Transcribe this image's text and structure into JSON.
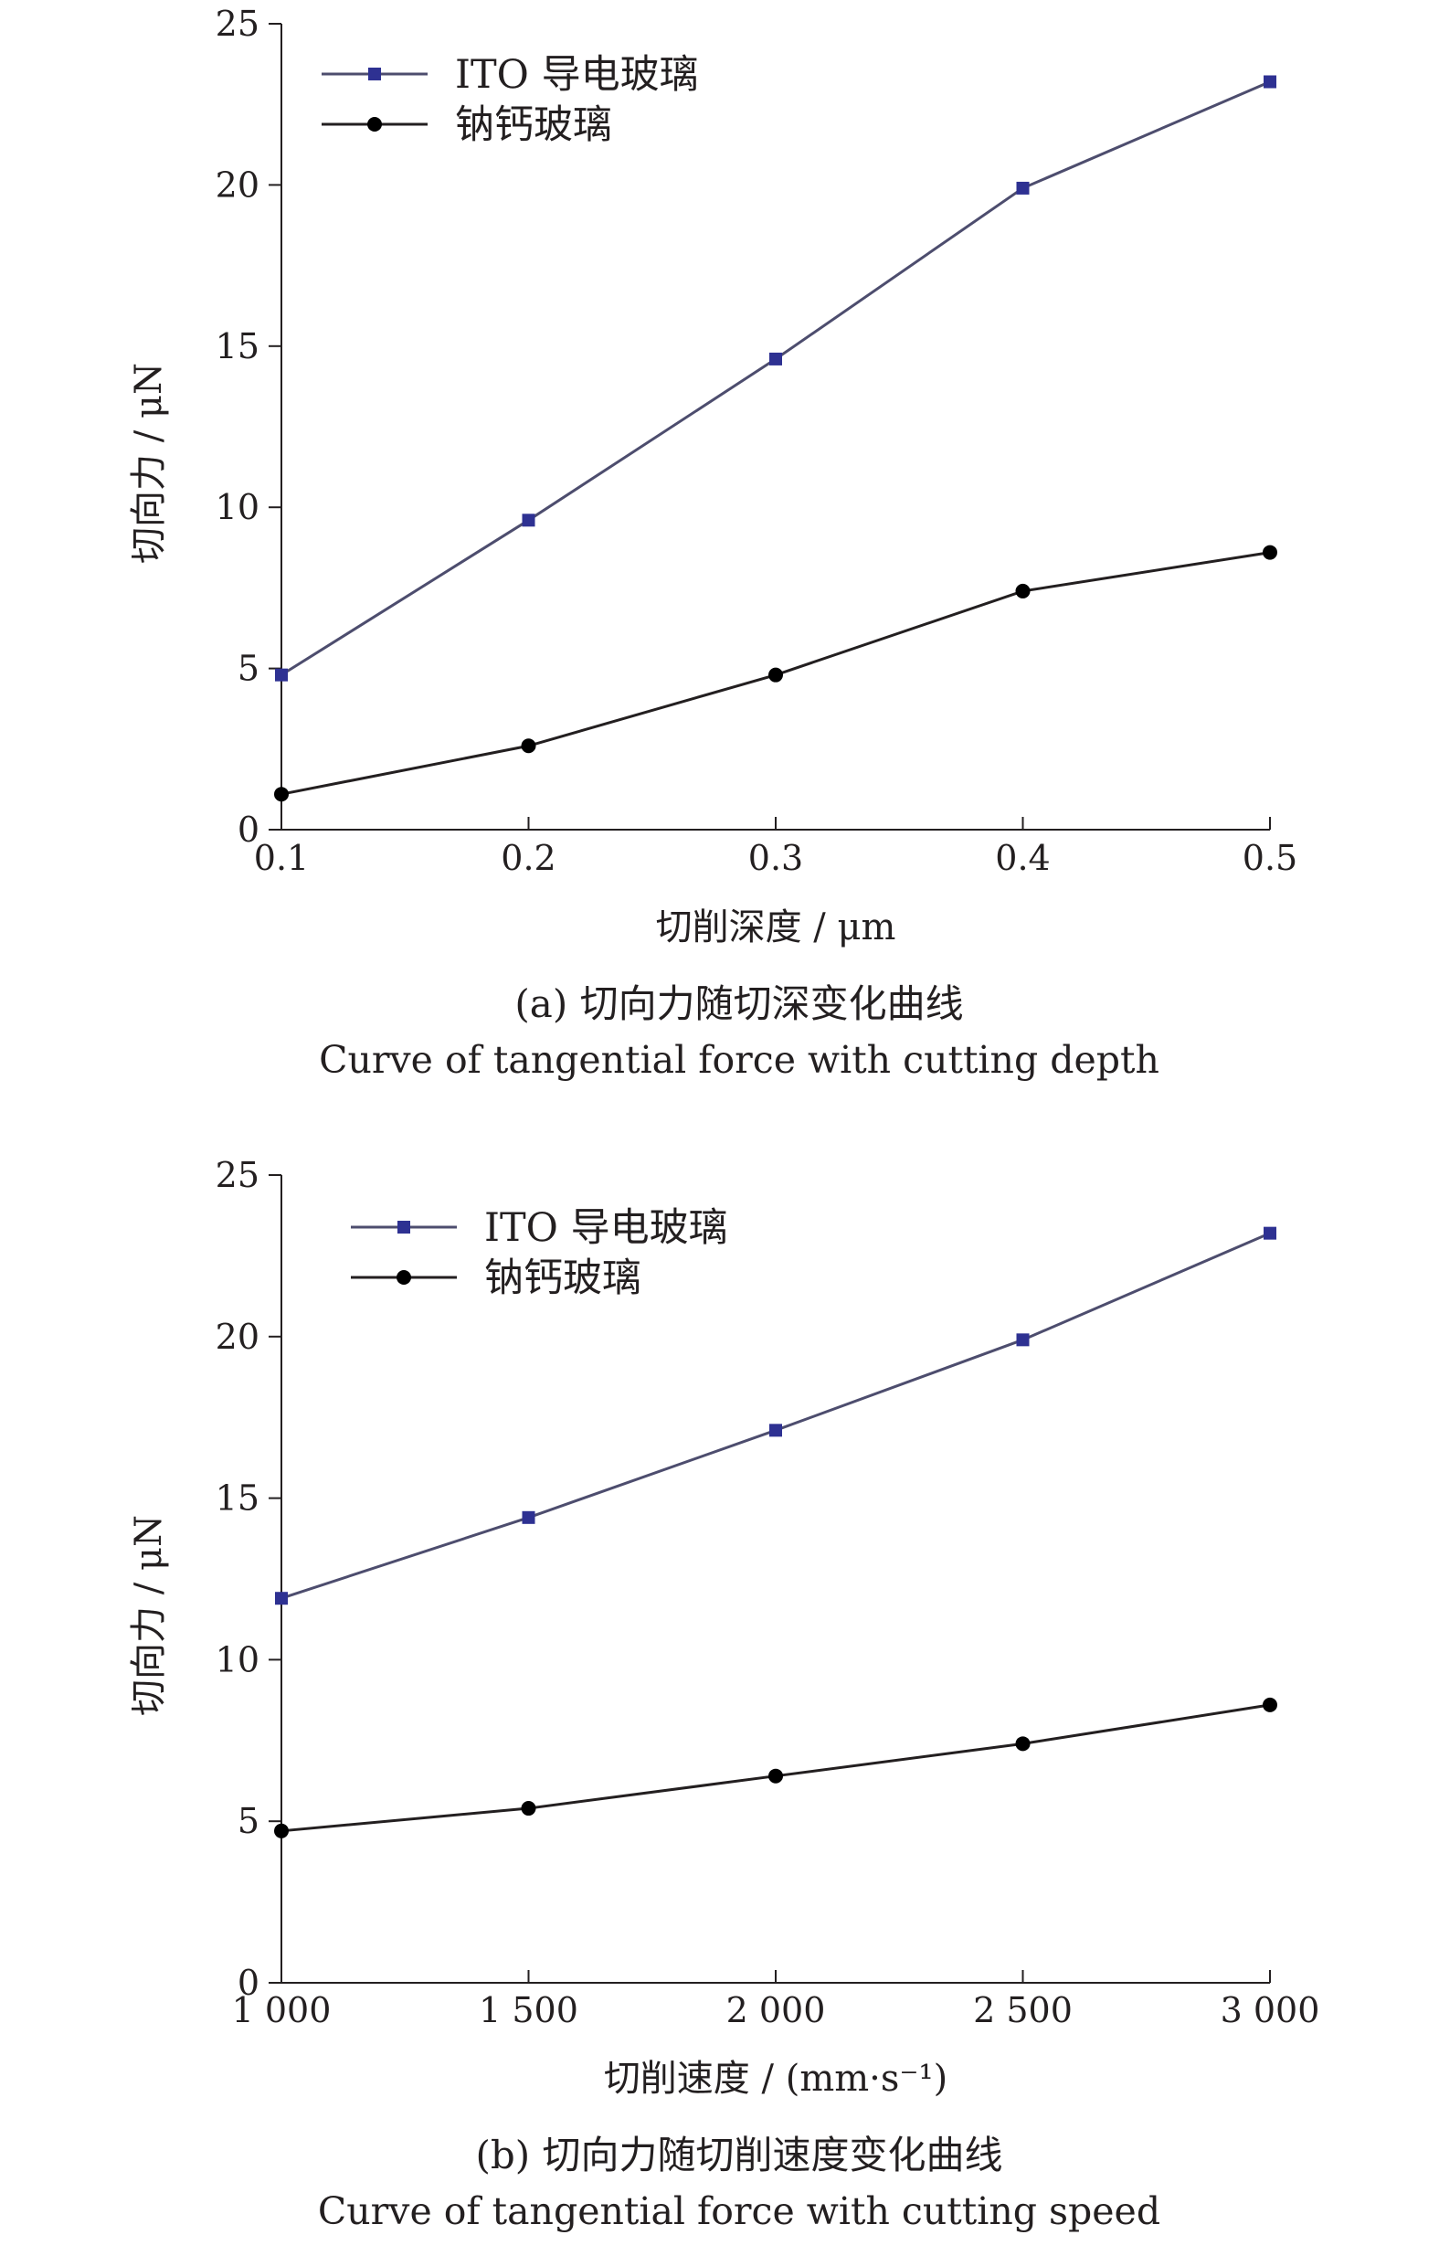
{
  "chart_data": [
    {
      "type": "line",
      "x": [
        0.1,
        0.2,
        0.3,
        0.4,
        0.5
      ],
      "x_tick_labels": [
        "0.1",
        "0.2",
        "0.3",
        "0.4",
        "0.5"
      ],
      "xlim": [
        0.1,
        0.5
      ],
      "ylim": [
        0,
        25
      ],
      "y_ticks": [
        0,
        5,
        10,
        15,
        20,
        25
      ],
      "y_tick_labels": [
        "0",
        "5",
        "10",
        "15",
        "20",
        "25"
      ],
      "xlabel": "切削深度 / μm",
      "ylabel": "切向力 / μN",
      "caption_cn": "(a) 切向力随切深变化曲线",
      "caption_en": "Curve of tangential force with cutting depth",
      "legend_position": "top-left",
      "grid": false,
      "series": [
        {
          "name": "ITO 导电玻璃",
          "marker": "square",
          "color": "#2e3192",
          "line_color": "#4d4d6e",
          "values": [
            4.8,
            9.6,
            14.6,
            19.9,
            23.2
          ]
        },
        {
          "name": "钠钙玻璃",
          "marker": "circle",
          "color": "#000000",
          "line_color": "#231f20",
          "values": [
            1.1,
            2.6,
            4.8,
            7.4,
            8.6
          ]
        }
      ]
    },
    {
      "type": "line",
      "x": [
        1000,
        1500,
        2000,
        2500,
        3000
      ],
      "x_tick_labels": [
        "1 000",
        "1 500",
        "2 000",
        "2 500",
        "3 000"
      ],
      "xlim": [
        1000,
        3000
      ],
      "ylim": [
        0,
        25
      ],
      "y_ticks": [
        0,
        5,
        10,
        15,
        20,
        25
      ],
      "y_tick_labels": [
        "0",
        "5",
        "10",
        "15",
        "20",
        "25"
      ],
      "xlabel": "切削速度 / (mm·s⁻¹)",
      "ylabel": "切向力 / μN",
      "caption_cn": "(b) 切向力随切削速度变化曲线",
      "caption_en": "Curve of tangential force with cutting speed",
      "legend_position": "top-left",
      "grid": false,
      "series": [
        {
          "name": "ITO 导电玻璃",
          "marker": "square",
          "color": "#2e3192",
          "line_color": "#4d4d6e",
          "values": [
            11.9,
            14.4,
            17.1,
            19.9,
            23.2
          ]
        },
        {
          "name": "钠钙玻璃",
          "marker": "circle",
          "color": "#000000",
          "line_color": "#231f20",
          "values": [
            4.7,
            5.4,
            6.4,
            7.4,
            8.6
          ]
        }
      ]
    }
  ]
}
